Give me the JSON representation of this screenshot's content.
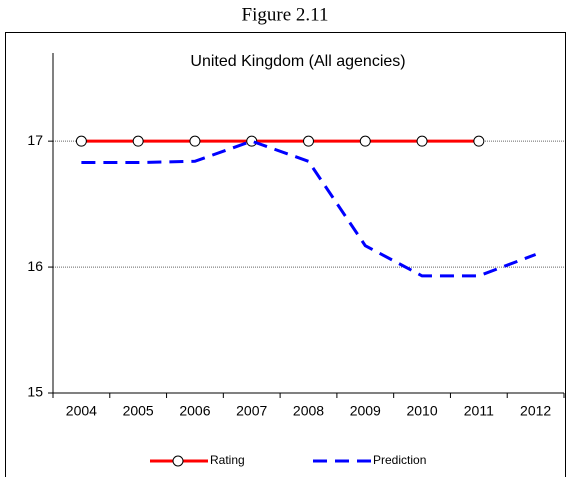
{
  "figure_title": "Figure 2.11",
  "chart_data": {
    "type": "line",
    "title": "United Kingdom (All agencies)",
    "categories": [
      "2004",
      "2005",
      "2006",
      "2007",
      "2008",
      "2009",
      "2010",
      "2011",
      "2012"
    ],
    "series": [
      {
        "name": "Rating",
        "color": "#ff0000",
        "values": [
          17,
          17,
          17,
          17,
          17,
          17,
          17,
          17,
          null
        ]
      },
      {
        "name": "Prediction",
        "color": "#0000ff",
        "values": [
          16.83,
          16.83,
          16.84,
          17.0,
          16.84,
          16.17,
          15.93,
          15.93,
          16.1
        ]
      }
    ],
    "ylim": [
      15,
      17.7
    ],
    "yticks": [
      15,
      16,
      17
    ],
    "grid": true
  }
}
